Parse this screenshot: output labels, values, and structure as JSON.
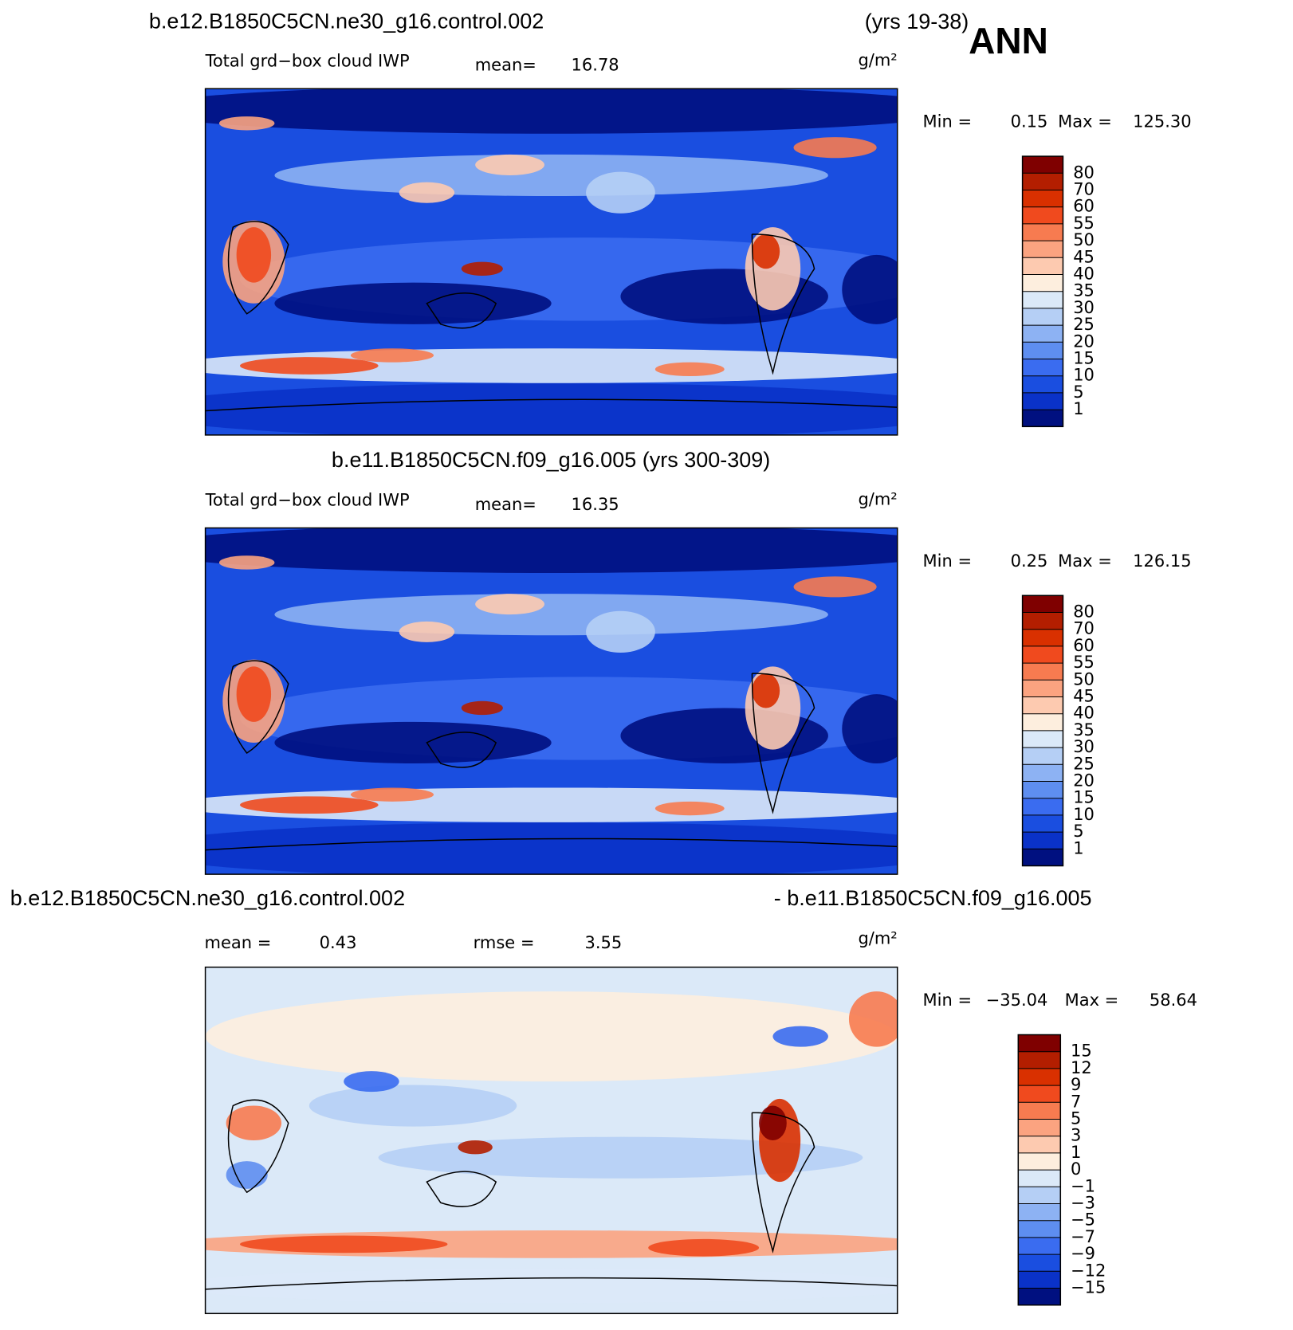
{
  "header": {
    "case_range": "(yrs 19-38)",
    "season": "ANN"
  },
  "panels": [
    {
      "title": "b.e12.B1850C5CN.ne30_g16.control.002",
      "variable": "Total grd−box cloud IWP",
      "mean_label": "mean=",
      "mean": 16.78,
      "units": "g/m²",
      "min_label": "Min =",
      "min": 0.15,
      "max_label": "Max =",
      "max": {
        "value": 125.3,
        "label": "125.30"
      },
      "levels": [
        80,
        70,
        60,
        55,
        50,
        45,
        40,
        35,
        30,
        25,
        20,
        15,
        10,
        5,
        1
      ],
      "colors": [
        "#7f0000",
        "#b31e00",
        "#d93000",
        "#f04a1e",
        "#f77b50",
        "#fba380",
        "#fdcab0",
        "#fdeede",
        "#dbe9f8",
        "#b5cff5",
        "#8db2f3",
        "#5e8ef0",
        "#3a6cf0",
        "#1a4ee0",
        "#0a32c8",
        "#001080"
      ]
    },
    {
      "title": "b.e11.B1850C5CN.f09_g16.005 (yrs 300-309)",
      "variable": "Total grd−box cloud IWP",
      "mean_label": "mean=",
      "mean": 16.35,
      "units": "g/m²",
      "min_label": "Min =",
      "min": 0.25,
      "max_label": "Max =",
      "max": 126.15,
      "levels": [
        80,
        70,
        60,
        55,
        50,
        45,
        40,
        35,
        30,
        25,
        20,
        15,
        10,
        5,
        1
      ],
      "colors": [
        "#7f0000",
        "#b31e00",
        "#d93000",
        "#f04a1e",
        "#f77b50",
        "#fba380",
        "#fdcab0",
        "#fdeede",
        "#dbe9f8",
        "#b5cff5",
        "#8db2f3",
        "#5e8ef0",
        "#3a6cf0",
        "#1a4ee0",
        "#0a32c8",
        "#001080"
      ]
    },
    {
      "title": "b.e12.B1850C5CN.ne30_g16.control.002",
      "title_right": "- b.e11.B1850C5CN.f09_g16.005",
      "mean_label": "mean =",
      "mean": 0.43,
      "rmse_label": "rmse =",
      "rmse": 3.55,
      "units": "g/m²",
      "min_label": "Min =",
      "min": {
        "value": -35.04,
        "label": "−35.04"
      },
      "max_label": "Max =",
      "max": 58.64,
      "levels": [
        15,
        12,
        9,
        7,
        5,
        3,
        1,
        0,
        {
          "value": -1,
          "label": "−1"
        },
        {
          "value": -3,
          "label": "−3"
        },
        {
          "value": -5,
          "label": "−5"
        },
        {
          "value": -7,
          "label": "−7"
        },
        {
          "value": -9,
          "label": "−9"
        },
        {
          "value": -12,
          "label": "−12"
        },
        {
          "value": -15,
          "label": "−15"
        }
      ],
      "colors": [
        "#7f0000",
        "#b31e00",
        "#d93000",
        "#f04a1e",
        "#f77b50",
        "#fba380",
        "#fdcab0",
        "#fdeede",
        "#dbe9f8",
        "#b5cff5",
        "#8db2f3",
        "#5e8ef0",
        "#3a6cf0",
        "#1a4ee0",
        "#0a32c8",
        "#001080"
      ]
    }
  ]
}
